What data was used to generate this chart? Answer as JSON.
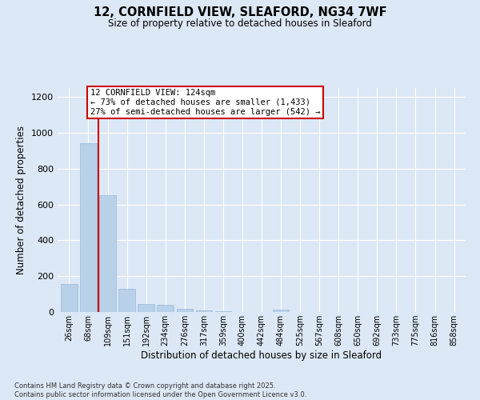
{
  "title": "12, CORNFIELD VIEW, SLEAFORD, NG34 7WF",
  "subtitle": "Size of property relative to detached houses in Sleaford",
  "xlabel": "Distribution of detached houses by size in Sleaford",
  "ylabel": "Number of detached properties",
  "categories": [
    "26sqm",
    "68sqm",
    "109sqm",
    "151sqm",
    "192sqm",
    "234sqm",
    "276sqm",
    "317sqm",
    "359sqm",
    "400sqm",
    "442sqm",
    "484sqm",
    "525sqm",
    "567sqm",
    "608sqm",
    "650sqm",
    "692sqm",
    "733sqm",
    "775sqm",
    "816sqm",
    "858sqm"
  ],
  "values": [
    155,
    940,
    650,
    130,
    45,
    40,
    20,
    10,
    5,
    0,
    0,
    15,
    0,
    0,
    0,
    0,
    0,
    0,
    0,
    0,
    0
  ],
  "bar_color": "#b8d0e8",
  "bar_edge_color": "#99bbdd",
  "ylim": [
    0,
    1250
  ],
  "yticks": [
    0,
    200,
    400,
    600,
    800,
    1000,
    1200
  ],
  "property_size": 124,
  "vline_x": 1.5,
  "annotation_title": "12 CORNFIELD VIEW: 124sqm",
  "annotation_line1": "← 73% of detached houses are smaller (1,433)",
  "annotation_line2": "27% of semi-detached houses are larger (542) →",
  "annotation_box_color": "#cc0000",
  "footer_line1": "Contains HM Land Registry data © Crown copyright and database right 2025.",
  "footer_line2": "Contains public sector information licensed under the Open Government Licence v3.0.",
  "background_color": "#dce8f5",
  "plot_bg_color": "#dce8f5",
  "grid_color": "#ffffff"
}
